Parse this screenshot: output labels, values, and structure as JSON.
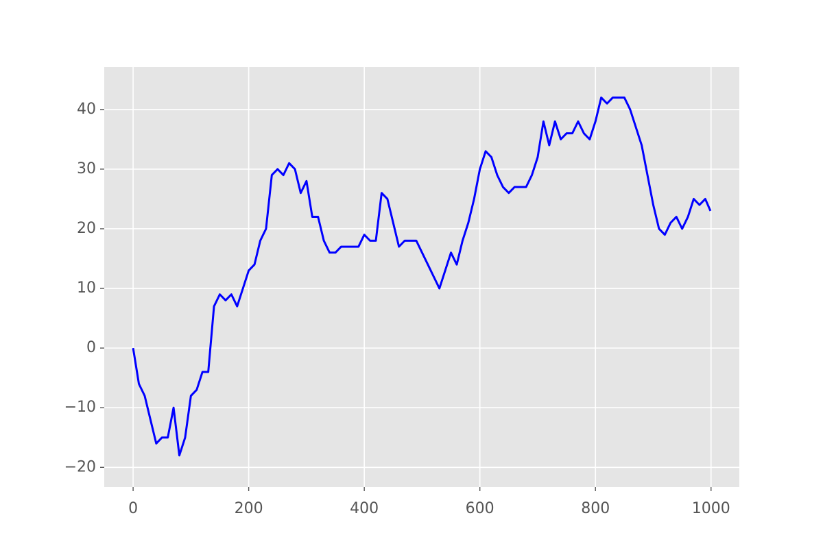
{
  "chart_data": {
    "type": "line",
    "x": [
      0,
      10,
      20,
      30,
      40,
      50,
      60,
      70,
      80,
      90,
      100,
      110,
      120,
      130,
      140,
      150,
      160,
      170,
      180,
      190,
      200,
      210,
      220,
      230,
      240,
      250,
      260,
      270,
      280,
      290,
      300,
      310,
      320,
      330,
      340,
      350,
      360,
      370,
      380,
      390,
      400,
      410,
      420,
      430,
      440,
      450,
      460,
      470,
      480,
      490,
      500,
      510,
      520,
      530,
      540,
      550,
      560,
      570,
      580,
      590,
      600,
      610,
      620,
      630,
      640,
      650,
      660,
      670,
      680,
      690,
      700,
      710,
      720,
      730,
      740,
      750,
      760,
      770,
      780,
      790,
      800,
      810,
      820,
      830,
      840,
      850,
      860,
      870,
      880,
      890,
      900,
      910,
      920,
      930,
      940,
      950,
      960,
      970,
      980,
      990,
      999
    ],
    "values": [
      0,
      -6,
      -8,
      -12,
      -16,
      -15,
      -15,
      -10,
      -18,
      -15,
      -8,
      -7,
      -4,
      -4,
      7,
      9,
      8,
      9,
      7,
      10,
      13,
      14,
      18,
      20,
      29,
      30,
      29,
      31,
      30,
      26,
      28,
      22,
      22,
      18,
      16,
      16,
      17,
      17,
      17,
      17,
      19,
      18,
      18,
      26,
      25,
      21,
      17,
      18,
      18,
      18,
      16,
      14,
      12,
      10,
      13,
      16,
      14,
      18,
      21,
      25,
      30,
      33,
      32,
      29,
      27,
      26,
      27,
      27,
      27,
      29,
      32,
      38,
      34,
      38,
      35,
      36,
      36,
      38,
      36,
      35,
      38,
      42,
      41,
      42,
      42,
      42,
      40,
      37,
      34,
      29,
      24,
      20,
      19,
      21,
      22,
      20,
      22,
      25,
      24,
      25,
      23
    ],
    "color": "#0000ff",
    "xlim": [
      -49.95,
      1048.95
    ],
    "xticks": [
      0,
      200,
      400,
      600,
      800,
      1000
    ],
    "ylim": [
      -23.3,
      47.1
    ],
    "yticks": [
      {
        "value": -20,
        "label": "−20"
      },
      {
        "value": -10,
        "label": "−10"
      },
      0,
      10,
      20,
      30,
      40
    ],
    "grid": true
  }
}
